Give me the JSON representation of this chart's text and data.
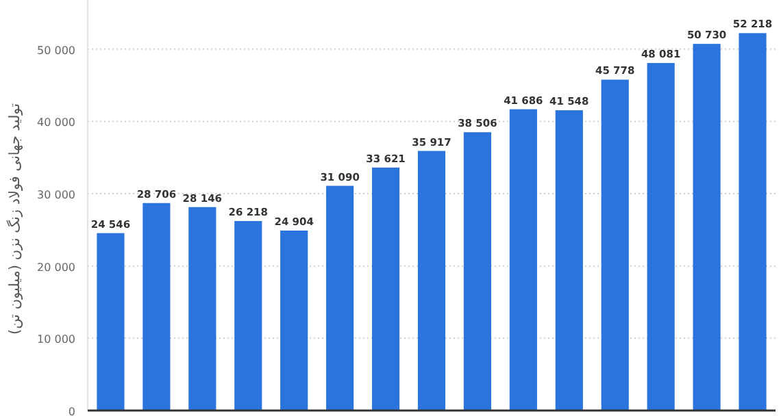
{
  "chart_data": {
    "type": "bar",
    "ylabel": "تولید جهانی فولاد زنگ نزن (میلیون تن)",
    "categories": [
      null,
      null,
      null,
      null,
      null,
      null,
      null,
      null,
      null,
      null,
      null,
      null,
      null,
      null,
      null
    ],
    "values": [
      24546,
      28706,
      28146,
      26218,
      24904,
      31090,
      33621,
      35917,
      38506,
      41686,
      41548,
      45778,
      48081,
      50730,
      52218
    ],
    "value_labels": [
      "24 546",
      "28 706",
      "28 146",
      "26 218",
      "24 904",
      "31 090",
      "33 621",
      "35 917",
      "38 506",
      "41 686",
      "41 548",
      "45 778",
      "48 081",
      "50 730",
      "52 218"
    ],
    "color": "#2b74de",
    "ylim": [
      0,
      56800
    ],
    "yticks": [
      {
        "value": 0,
        "label": "0"
      },
      {
        "value": 10000,
        "label": "10 000"
      },
      {
        "value": 20000,
        "label": "20 000"
      },
      {
        "value": 30000,
        "label": "30 000"
      },
      {
        "value": 40000,
        "label": "40 000"
      },
      {
        "value": 50000,
        "label": "50 000"
      }
    ],
    "grid": "y"
  }
}
